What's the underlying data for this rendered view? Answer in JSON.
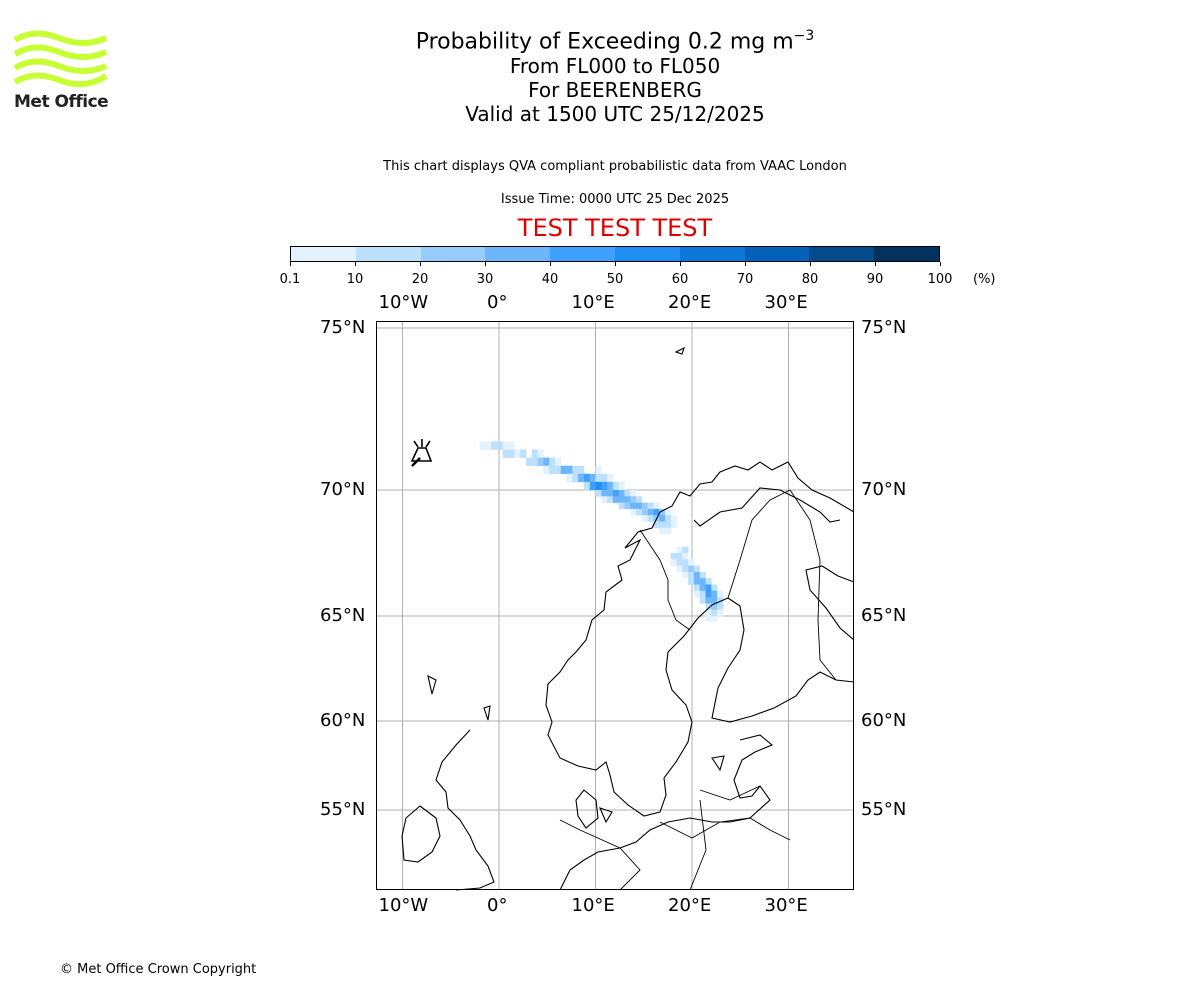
{
  "logo": {
    "text": "Met Office",
    "color": "#c8ff32"
  },
  "title": {
    "main": "Probability of Exceeding 0.2 mg m",
    "main_sup": "−3",
    "line2": "From FL000 to FL050",
    "line3": "For BEERENBERG",
    "line4": "Valid at 1500 UTC 25/12/2025"
  },
  "description": "This chart displays QVA compliant probabilistic data from VAAC London",
  "issue_time": "Issue Time: 0000 UTC 25 Dec 2025",
  "test_banner": "TEST TEST TEST",
  "colorbar": {
    "ticks": [
      "0.1",
      "10",
      "20",
      "30",
      "40",
      "50",
      "60",
      "70",
      "80",
      "90",
      "100"
    ],
    "unit": "(%)",
    "colors": [
      "#e4f2fe",
      "#bde0fd",
      "#97cbfc",
      "#6db6fc",
      "#3fa0fd",
      "#1e8ef2",
      "#0c76db",
      "#0562bb",
      "#054c8e",
      "#03325e"
    ]
  },
  "axes": {
    "lon_labels": [
      "10°W",
      "0°",
      "10°E",
      "20°E",
      "30°E"
    ],
    "lat_labels": [
      "75°N",
      "70°N",
      "65°N",
      "60°N",
      "55°N"
    ]
  },
  "chart_data": {
    "type": "heatmap",
    "volcano": {
      "name": "BEERENBERG",
      "lon": -8.2,
      "lat": 71.1
    },
    "cell_size_deg": [
      0.6,
      0.25
    ],
    "cells_lat_lon_pct": [
      [
        71.25,
        [
          [
            -2,
            5
          ],
          [
            -1.4,
            5
          ],
          [
            -0.8,
            15
          ],
          [
            -0.2,
            15
          ],
          [
            0.4,
            5
          ],
          [
            1.0,
            5
          ]
        ]
      ],
      [
        71.0,
        [
          [
            0.4,
            15
          ],
          [
            1.0,
            15
          ],
          [
            1.6,
            5
          ],
          [
            2.2,
            15
          ],
          [
            3.4,
            15
          ],
          [
            4.0,
            5
          ]
        ]
      ],
      [
        70.75,
        [
          [
            2.8,
            15
          ],
          [
            3.4,
            15
          ],
          [
            4.0,
            25
          ],
          [
            4.6,
            35
          ],
          [
            5.2,
            15
          ],
          [
            5.8,
            5
          ]
        ]
      ],
      [
        70.5,
        [
          [
            4.6,
            5
          ],
          [
            5.2,
            15
          ],
          [
            5.8,
            15
          ],
          [
            6.4,
            35
          ],
          [
            7.0,
            35
          ],
          [
            7.6,
            15
          ],
          [
            8.2,
            15
          ],
          [
            10,
            5
          ]
        ]
      ],
      [
        70.25,
        [
          [
            7.0,
            5
          ],
          [
            7.6,
            15
          ],
          [
            8.2,
            35
          ],
          [
            8.8,
            45
          ],
          [
            9.4,
            35
          ],
          [
            10,
            15
          ],
          [
            10.6,
            15
          ],
          [
            11.2,
            5
          ]
        ]
      ],
      [
        70.0,
        [
          [
            8.8,
            15
          ],
          [
            9.4,
            45
          ],
          [
            10,
            55
          ],
          [
            10.6,
            45
          ],
          [
            11.2,
            35
          ],
          [
            11.8,
            15
          ],
          [
            12.4,
            5
          ]
        ]
      ],
      [
        69.75,
        [
          [
            10,
            15
          ],
          [
            10.6,
            35
          ],
          [
            11.2,
            35
          ],
          [
            11.8,
            45
          ],
          [
            12.4,
            35
          ],
          [
            13,
            15
          ],
          [
            13.6,
            5
          ]
        ]
      ],
      [
        69.5,
        [
          [
            10.6,
            5
          ],
          [
            11.2,
            15
          ],
          [
            11.8,
            35
          ],
          [
            12.4,
            35
          ],
          [
            13,
            35
          ],
          [
            13.6,
            25
          ],
          [
            14.2,
            15
          ]
        ]
      ],
      [
        69.25,
        [
          [
            12.4,
            15
          ],
          [
            13,
            25
          ],
          [
            13.6,
            35
          ],
          [
            14.2,
            35
          ],
          [
            14.8,
            25
          ],
          [
            15.4,
            15
          ],
          [
            16,
            5
          ]
        ]
      ],
      [
        69.0,
        [
          [
            13.6,
            5
          ],
          [
            14.2,
            15
          ],
          [
            14.8,
            25
          ],
          [
            15.4,
            35
          ],
          [
            16,
            45
          ],
          [
            16.6,
            25
          ],
          [
            17.2,
            5
          ]
        ]
      ],
      [
        68.75,
        [
          [
            14.8,
            5
          ],
          [
            15.4,
            15
          ],
          [
            16,
            25
          ],
          [
            16.6,
            35
          ],
          [
            17.2,
            15
          ],
          [
            17.8,
            5
          ]
        ]
      ],
      [
        68.5,
        [
          [
            16,
            15
          ],
          [
            16.6,
            15
          ],
          [
            17.2,
            15
          ],
          [
            17.8,
            5
          ]
        ]
      ],
      [
        68.25,
        [
          [
            16.6,
            5
          ],
          [
            17.2,
            5
          ]
        ]
      ],
      [
        67.5,
        [
          [
            18.4,
            5
          ],
          [
            19,
            15
          ]
        ]
      ],
      [
        67.25,
        [
          [
            17.8,
            15
          ],
          [
            18.4,
            15
          ],
          [
            19,
            5
          ]
        ]
      ],
      [
        67.0,
        [
          [
            17.8,
            5
          ],
          [
            18.4,
            15
          ],
          [
            19,
            15
          ],
          [
            19.6,
            5
          ]
        ]
      ],
      [
        66.75,
        [
          [
            18.4,
            5
          ],
          [
            19,
            15
          ],
          [
            19.6,
            25
          ],
          [
            20.2,
            15
          ]
        ]
      ],
      [
        66.5,
        [
          [
            19,
            5
          ],
          [
            19.6,
            15
          ],
          [
            20.2,
            35
          ],
          [
            20.8,
            15
          ]
        ]
      ],
      [
        66.25,
        [
          [
            19.6,
            15
          ],
          [
            20.2,
            35
          ],
          [
            20.8,
            35
          ],
          [
            21.4,
            15
          ]
        ]
      ],
      [
        66.0,
        [
          [
            20.2,
            15
          ],
          [
            20.8,
            35
          ],
          [
            21.4,
            45
          ],
          [
            22,
            15
          ]
        ]
      ],
      [
        65.75,
        [
          [
            20.2,
            5
          ],
          [
            20.8,
            15
          ],
          [
            21.4,
            45
          ],
          [
            22,
            35
          ],
          [
            22.6,
            5
          ]
        ]
      ],
      [
        65.5,
        [
          [
            20.8,
            15
          ],
          [
            21.4,
            35
          ],
          [
            22,
            35
          ],
          [
            22.6,
            15
          ]
        ]
      ],
      [
        65.25,
        [
          [
            21.4,
            15
          ],
          [
            22,
            25
          ],
          [
            22.6,
            15
          ]
        ]
      ],
      [
        65.0,
        [
          [
            21.4,
            5
          ],
          [
            22,
            15
          ],
          [
            22.6,
            5
          ]
        ]
      ],
      [
        64.75,
        [
          [
            21.4,
            5
          ],
          [
            22,
            5
          ]
        ]
      ]
    ]
  },
  "copyright": "© Met Office Crown Copyright"
}
